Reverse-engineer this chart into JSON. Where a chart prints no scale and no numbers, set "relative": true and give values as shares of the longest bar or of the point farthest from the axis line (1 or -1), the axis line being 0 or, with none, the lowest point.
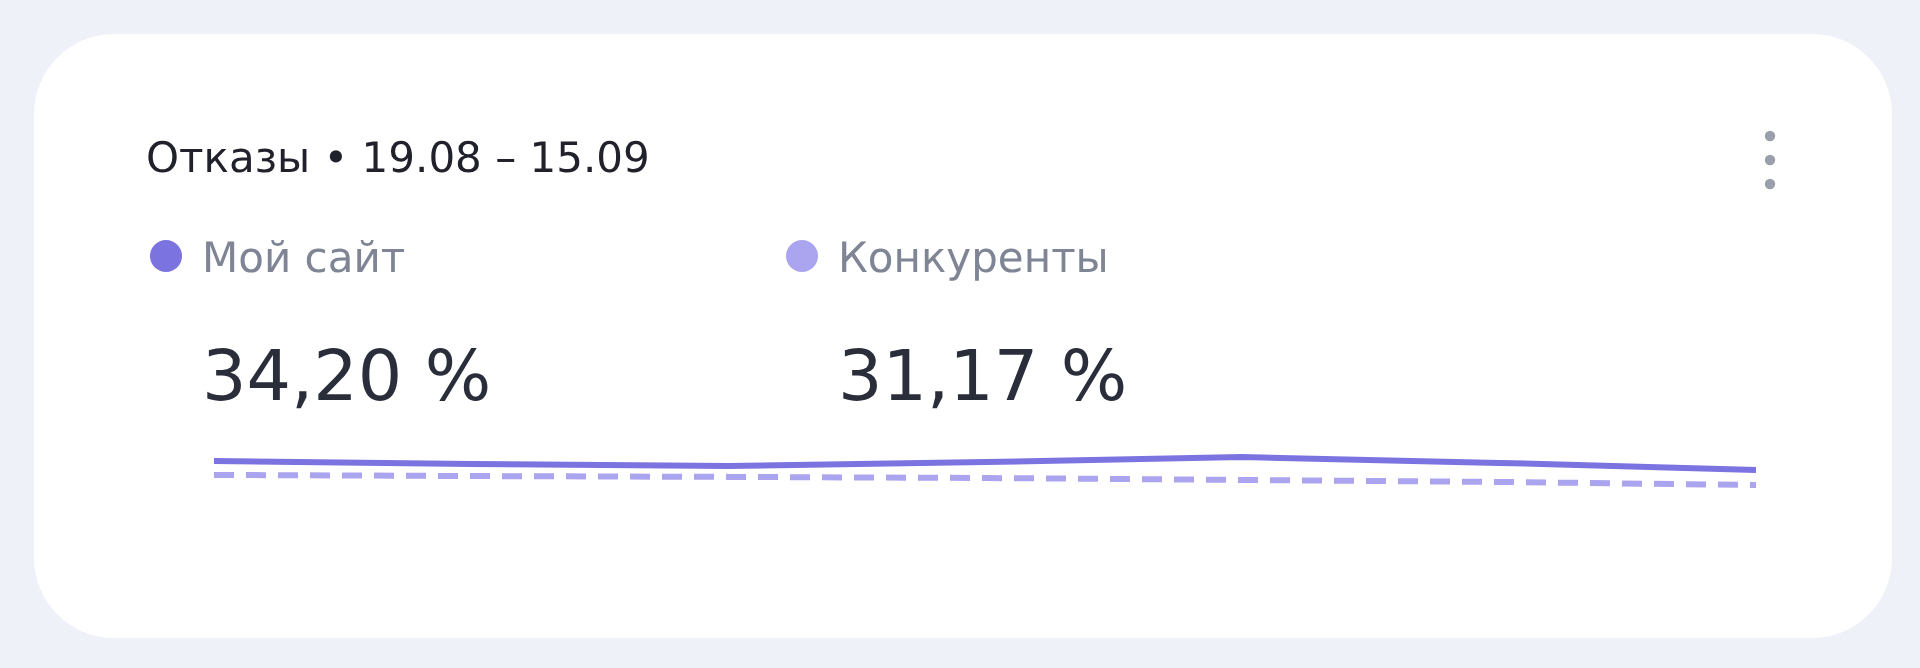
{
  "chart_data": {
    "type": "line",
    "title": "Отказы • 19.08 – 15.09",
    "relative": true,
    "legend": "top left",
    "categories": [
      null,
      null,
      null,
      null,
      null,
      null,
      null
    ],
    "series": [
      {
        "name": "Мой сайт",
        "color": "#7b73e0",
        "line_style": "solid",
        "values": [
          0.86,
          0.75,
          0.68,
          0.82,
          1,
          0.79,
          0.54
        ]
      },
      {
        "name": "Конкуренты",
        "color": "#aaa5ee",
        "line_style": "dashed",
        "values": [
          0.36,
          0.32,
          0.29,
          0.25,
          0.18,
          0.11,
          0
        ]
      }
    ],
    "annotations": [
      "34,20 %",
      "31,17 %"
    ]
  }
}
